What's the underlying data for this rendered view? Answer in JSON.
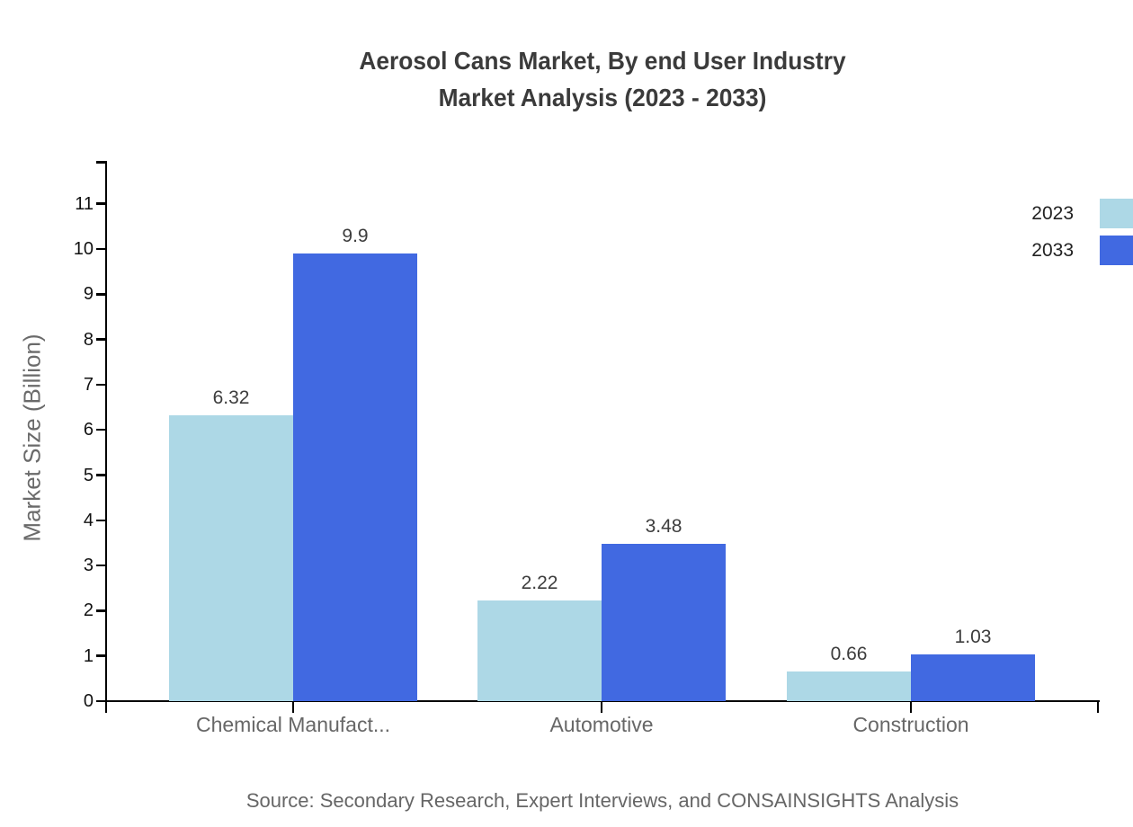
{
  "title": {
    "line1": "Aerosol Cans Market, By end User Industry",
    "line2": "Market Analysis (2023 - 2033)"
  },
  "source": {
    "text": "Source: Secondary Research, Expert Interviews, and CONSAINSIGHTS Analysis"
  },
  "chart_data": {
    "type": "bar",
    "title": "Aerosol Cans Market, By end User Industry Market Analysis (2023 - 2033)",
    "categories": [
      "Chemical Manufact...",
      "Automotive",
      "Construction"
    ],
    "series": [
      {
        "name": "2023",
        "color": "#ADD8E6",
        "values": [
          6.32,
          2.22,
          0.66
        ]
      },
      {
        "name": "2033",
        "color": "#4169E1",
        "values": [
          9.9,
          3.48,
          1.03
        ]
      }
    ],
    "xlabel": "",
    "ylabel": "Market Size (Billion)",
    "yticks": [
      0,
      1,
      2,
      3,
      4,
      5,
      6,
      7,
      8,
      9,
      10,
      11
    ],
    "ylim": [
      0,
      11.9
    ],
    "grid": false,
    "legend_position": "top-right",
    "value_labels": {
      "2023": [
        "6.32",
        "2.22",
        "0.66"
      ],
      "2033": [
        "9.9",
        "3.48",
        "1.03"
      ]
    },
    "colors": {
      "series_2023": "#ADD8E6",
      "series_2033": "#4169E1",
      "axis": "#000000",
      "tick_label": "#111111",
      "category_label": "#676767",
      "value_label": "#3d3d3d",
      "title": "#3b3b3b",
      "source": "#666666"
    }
  }
}
